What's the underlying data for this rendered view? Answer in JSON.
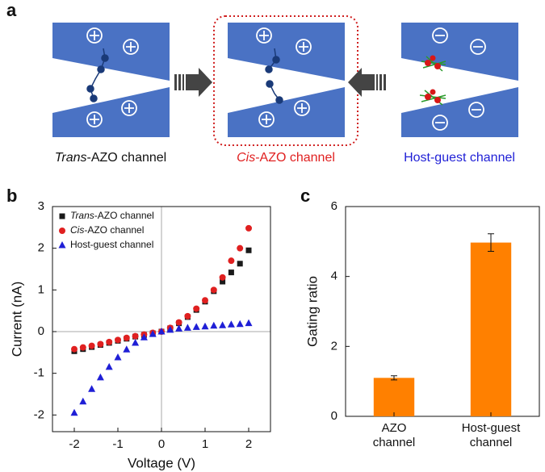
{
  "panel_labels": [
    "a",
    "b",
    "c"
  ],
  "diagram": {
    "captions": [
      "Trans-AZO channel",
      "Cis-AZO channel",
      "Host-guest channel"
    ]
  },
  "chart_data": [
    {
      "type": "scatter",
      "xlabel": "Voltage (V)",
      "ylabel": "Current (nA)",
      "xlim": [
        -2.5,
        2.5
      ],
      "ylim": [
        -2.4,
        3
      ],
      "xticks": [
        -2,
        -1,
        0,
        1,
        2
      ],
      "yticks": [
        -2,
        -1,
        0,
        1,
        2,
        3
      ],
      "legend": "upper left",
      "x": [
        -2,
        -1.8,
        -1.6,
        -1.4,
        -1.2,
        -1,
        -0.8,
        -0.6,
        -0.4,
        -0.2,
        0,
        0.2,
        0.4,
        0.6,
        0.8,
        1,
        1.2,
        1.4,
        1.6,
        1.8,
        2
      ],
      "series": [
        {
          "name": "Trans-AZO channel",
          "color": "#1a1a1a",
          "marker": "square",
          "values": [
            -0.47,
            -0.42,
            -0.37,
            -0.32,
            -0.27,
            -0.22,
            -0.17,
            -0.12,
            -0.08,
            -0.04,
            0,
            0.08,
            0.2,
            0.35,
            0.52,
            0.72,
            0.97,
            1.2,
            1.42,
            1.63,
            1.95
          ]
        },
        {
          "name": "Cis-AZO channel",
          "color": "#e02020",
          "marker": "circle",
          "values": [
            -0.42,
            -0.38,
            -0.34,
            -0.3,
            -0.25,
            -0.2,
            -0.15,
            -0.11,
            -0.07,
            -0.03,
            0,
            0.09,
            0.22,
            0.37,
            0.55,
            0.75,
            1.0,
            1.3,
            1.7,
            2.0,
            2.48
          ]
        },
        {
          "name": "Host-guest channel",
          "color": "#1f1fd6",
          "marker": "triangle",
          "values": [
            -1.95,
            -1.68,
            -1.38,
            -1.1,
            -0.85,
            -0.62,
            -0.43,
            -0.27,
            -0.14,
            -0.06,
            0,
            0.04,
            0.07,
            0.09,
            0.11,
            0.12,
            0.14,
            0.15,
            0.17,
            0.18,
            0.2
          ]
        }
      ]
    },
    {
      "type": "bar",
      "ylabel": "Gating ratio",
      "categories": [
        "AZO channel",
        "Host-guest channel"
      ],
      "values": [
        1.1,
        4.97
      ],
      "errors": [
        0.06,
        0.25
      ],
      "color": "#ff8000",
      "ylim": [
        0,
        6
      ],
      "yticks": [
        0,
        2,
        4,
        6
      ]
    }
  ]
}
